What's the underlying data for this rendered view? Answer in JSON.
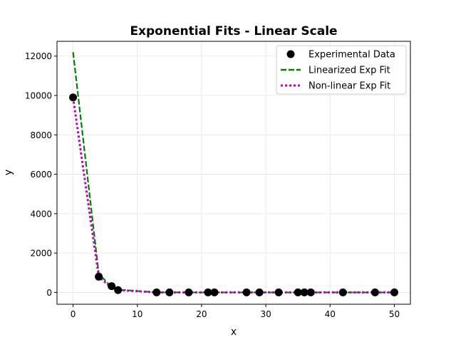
{
  "chart_data": {
    "type": "line",
    "title": "Exponential Fits - Linear Scale",
    "xlabel": "x",
    "ylabel": "y",
    "xlim": [
      -2.5,
      52.5
    ],
    "ylim": [
      -600,
      12750
    ],
    "xticks": [
      0,
      10,
      20,
      30,
      40,
      50
    ],
    "yticks": [
      0,
      2000,
      4000,
      6000,
      8000,
      10000,
      12000
    ],
    "grid": true,
    "legend_position": "top-right",
    "series": [
      {
        "name": "Experimental Data",
        "kind": "scatter",
        "color": "#000000",
        "x": [
          0,
          4,
          6,
          7,
          13,
          15,
          18,
          21,
          22,
          27,
          29,
          32,
          35,
          36,
          37,
          42,
          47,
          50
        ],
        "y": [
          9900,
          800,
          320,
          120,
          2,
          1,
          1,
          1,
          1,
          1,
          1,
          1,
          1,
          1,
          1,
          1,
          1,
          1
        ]
      },
      {
        "name": "Linearized Exp Fit",
        "kind": "line",
        "style": "dashed",
        "color": "#008000",
        "x": [
          0,
          4,
          6,
          7,
          13,
          15,
          18,
          21,
          22,
          27,
          29,
          32,
          35,
          36,
          37,
          42,
          47,
          50
        ],
        "y": [
          12200,
          950,
          260,
          140,
          3,
          1,
          0,
          0,
          0,
          0,
          0,
          0,
          0,
          0,
          0,
          0,
          0,
          0
        ]
      },
      {
        "name": "Non-linear Exp Fit",
        "kind": "line",
        "style": "dotted",
        "color": "#bf00bf",
        "x": [
          0,
          4,
          6,
          7,
          13,
          15,
          18,
          21,
          22,
          27,
          29,
          32,
          35,
          36,
          37,
          42,
          47,
          50
        ],
        "y": [
          9900,
          800,
          230,
          120,
          3,
          1,
          0,
          0,
          0,
          0,
          0,
          0,
          0,
          0,
          0,
          0,
          0,
          0
        ]
      }
    ]
  }
}
